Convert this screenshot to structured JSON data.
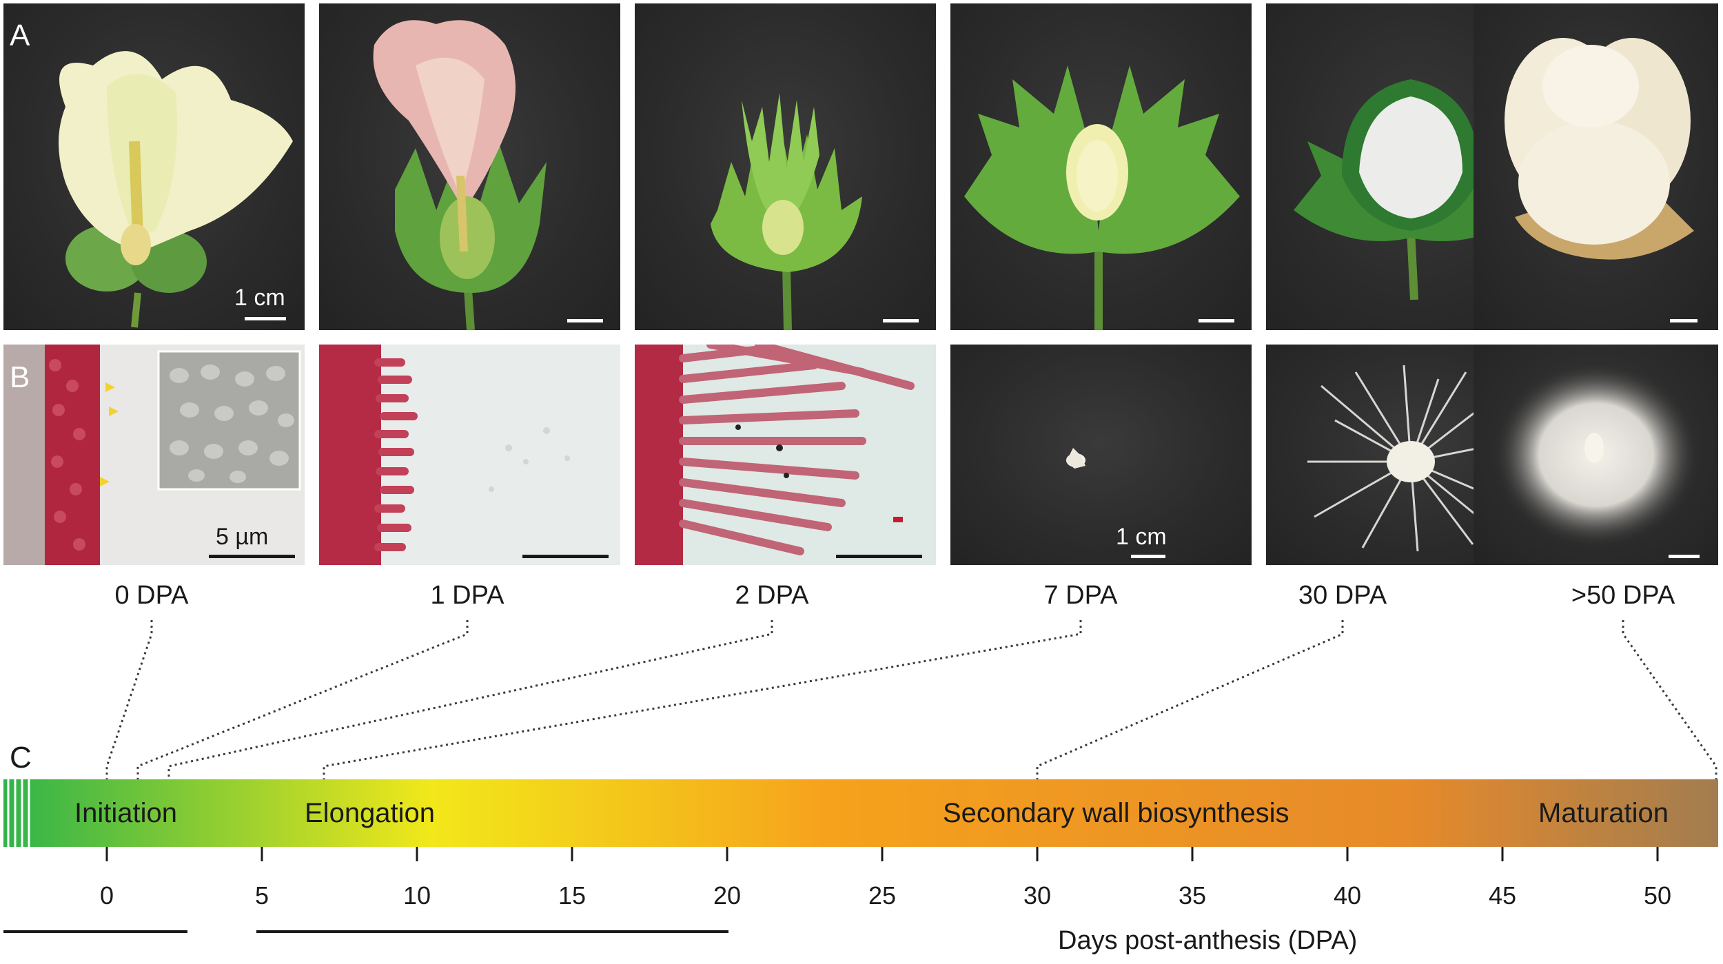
{
  "figure": {
    "panel_letters": {
      "a": "A",
      "b": "B",
      "c": "C"
    },
    "scale_labels": {
      "row_a_first": "1 cm",
      "row_b_first": "5 µm",
      "row_b_fourth": "1 cm"
    },
    "stage_labels": [
      "0 DPA",
      "1 DPA",
      "2 DPA",
      "7 DPA",
      "30 DPA",
      ">50 DPA"
    ],
    "timeline": {
      "phases": [
        "Initiation",
        "Elongation",
        "Secondary wall biosynthesis",
        "Maturation"
      ],
      "ticks": [
        "0",
        "5",
        "10",
        "15",
        "20",
        "25",
        "30",
        "35",
        "40",
        "45",
        "50"
      ],
      "axis_title": "Days post-anthesis (DPA)",
      "stage_days": [
        0,
        1,
        2,
        7,
        30,
        52
      ],
      "gradient_colors": [
        "#2fb34a",
        "#f2e81a",
        "#f6a21c",
        "#e68a2a",
        "#a27d50"
      ]
    }
  }
}
